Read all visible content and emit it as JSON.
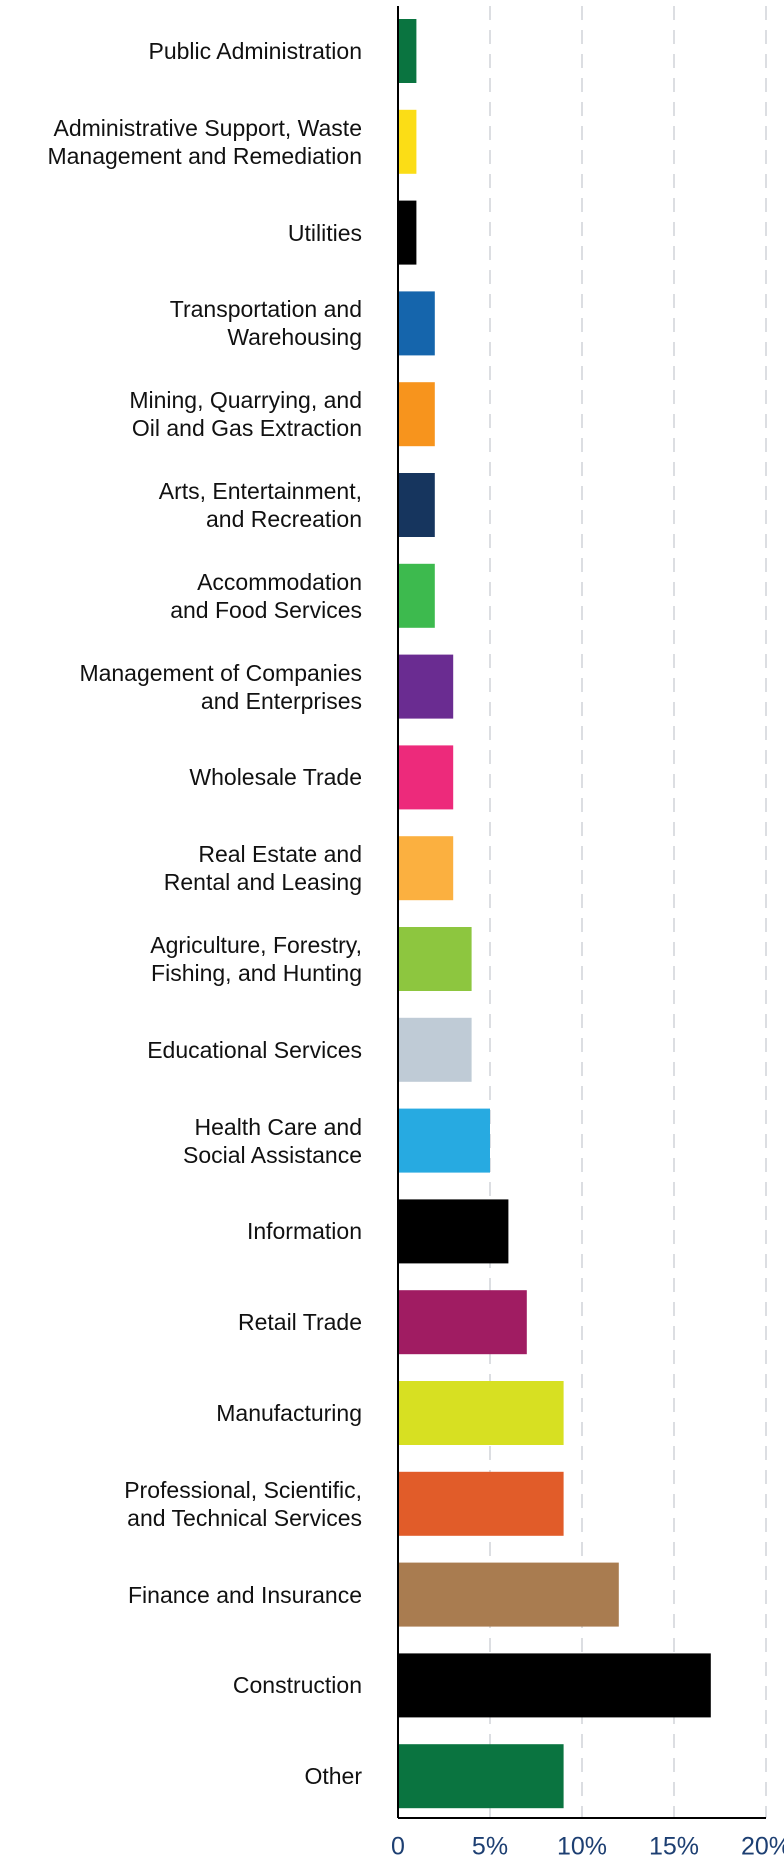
{
  "chart_data": {
    "type": "bar",
    "orientation": "horizontal",
    "categories": [
      "Public Administration",
      "Administrative Support, Waste\nManagement and Remediation",
      "Utilities",
      "Transportation and\nWarehousing",
      "Mining, Quarrying, and\nOil and Gas Extraction",
      "Arts, Entertainment,\nand Recreation",
      "Accommodation\nand Food Services",
      "Management of Companies\nand Enterprises",
      "Wholesale Trade",
      "Real Estate and\nRental and Leasing",
      "Agriculture, Forestry,\nFishing, and Hunting",
      "Educational Services",
      "Health Care and\nSocial Assistance",
      "Information",
      "Retail Trade",
      "Manufacturing",
      "Professional, Scientific,\nand Technical Services",
      "Finance and Insurance",
      "Construction",
      "Other"
    ],
    "values": [
      1,
      1,
      1,
      2,
      2,
      2,
      2,
      3,
      3,
      3,
      4,
      4,
      5,
      6,
      7,
      9,
      9,
      12,
      17,
      9
    ],
    "colors": [
      "#0a7440",
      "#fbdd16",
      "#000000",
      "#1565ac",
      "#f7941d",
      "#16355e",
      "#3dba4e",
      "#6a2c91",
      "#ed2a7b",
      "#fbb040",
      "#8dc63f",
      "#bfcbd6",
      "#27aae1",
      "#000000",
      "#a01c62",
      "#d7e022",
      "#e15c29",
      "#a97c50",
      "#000000",
      "#0a7440"
    ],
    "xlim": [
      0,
      20
    ],
    "xticks": [
      0,
      {
        "value": 5,
        "label": "5%"
      },
      {
        "value": 10,
        "label": "10%"
      },
      {
        "value": 15,
        "label": "15%"
      },
      {
        "value": 20,
        "label": "20%"
      }
    ],
    "grid": true
  }
}
